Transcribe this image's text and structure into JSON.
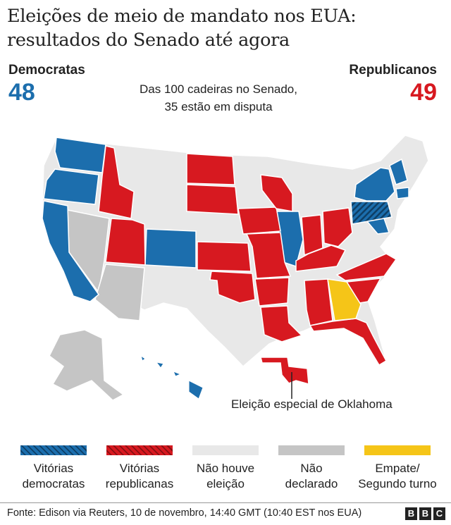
{
  "title_line1": "Eleições de meio de mandato nos EUA:",
  "title_line2": "resultados do Senado até agora",
  "democrats": {
    "label": "Democratas",
    "seats": "48"
  },
  "republicans": {
    "label": "Republicanos",
    "seats": "49"
  },
  "subtitle_line1": "Das 100 cadeiras no Senado,",
  "subtitle_line2": "35 estão em disputa",
  "callout": "Eleição especial de Oklahoma",
  "colors": {
    "dem": "#1c6ead",
    "rep": "#d71920",
    "none": "#e8e8e8",
    "undeclared": "#c5c5c5",
    "tie": "#f5c518",
    "border": "#ffffff"
  },
  "legend": [
    {
      "line1": "Vitórias",
      "line2": "democratas",
      "color": "#1c6ead",
      "hatched": true
    },
    {
      "line1": "Vitórias",
      "line2": "republicanas",
      "color": "#d71920",
      "hatched": true
    },
    {
      "line1": "Não houve",
      "line2": "eleição",
      "color": "#e8e8e8",
      "hatched": false
    },
    {
      "line1": "Não",
      "line2": "declarado",
      "color": "#c5c5c5",
      "hatched": false
    },
    {
      "line1": "Empate/",
      "line2": "Segundo turno",
      "color": "#f5c518",
      "hatched": false
    }
  ],
  "source": "Fonte: Edison via Reuters, 10 de novembro, 14:40 GMT (10:40 EST nos EUA)",
  "logo": [
    "B",
    "B",
    "C"
  ]
}
